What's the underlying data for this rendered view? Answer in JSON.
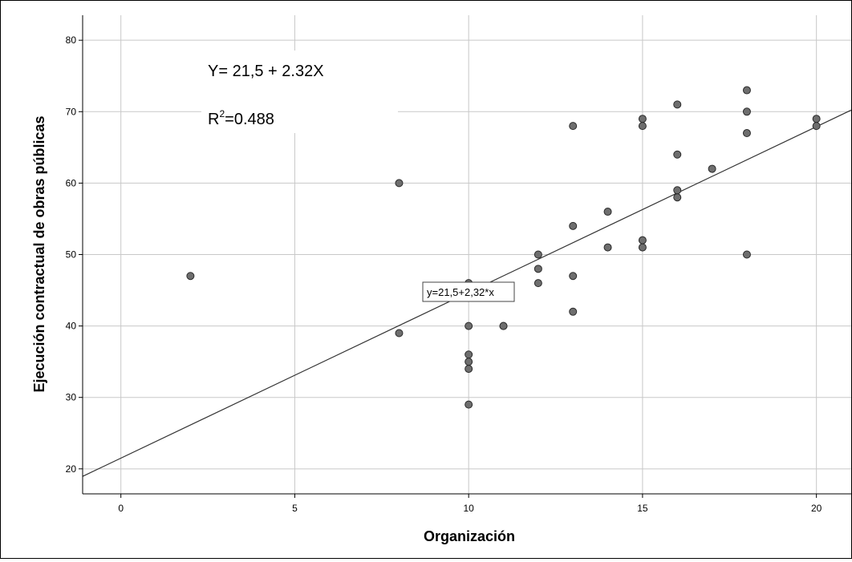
{
  "chart_data": {
    "type": "scatter",
    "xlabel": "Organización",
    "ylabel": "Ejecución contractual de obras públicas",
    "xlim": [
      -1.1,
      21
    ],
    "ylim": [
      16.5,
      83.5
    ],
    "xticks": [
      0,
      5,
      10,
      15,
      20
    ],
    "yticks": [
      20,
      30,
      40,
      50,
      60,
      70,
      80
    ],
    "grid": true,
    "annotations": {
      "equation": "Y= 21,5 + 2.32X",
      "r2_prefix": "R",
      "r2_sup": "2",
      "r2_value": "=0.488",
      "fit_label": "y=21,5+2,32*x"
    },
    "fit_line": {
      "intercept": 21.5,
      "slope": 2.32
    },
    "points": [
      [
        2,
        47
      ],
      [
        8,
        60
      ],
      [
        8,
        39
      ],
      [
        10,
        46
      ],
      [
        10,
        40
      ],
      [
        10,
        36
      ],
      [
        10,
        35
      ],
      [
        10,
        34
      ],
      [
        10,
        29
      ],
      [
        11,
        40
      ],
      [
        11,
        40
      ],
      [
        12,
        50
      ],
      [
        12,
        48
      ],
      [
        12,
        46
      ],
      [
        13,
        68
      ],
      [
        13,
        54
      ],
      [
        13,
        47
      ],
      [
        13,
        42
      ],
      [
        14,
        56
      ],
      [
        14,
        51
      ],
      [
        15,
        69
      ],
      [
        15,
        68
      ],
      [
        15,
        52
      ],
      [
        15,
        51
      ],
      [
        16,
        71
      ],
      [
        16,
        64
      ],
      [
        16,
        59
      ],
      [
        16,
        58
      ],
      [
        17,
        62
      ],
      [
        18,
        73
      ],
      [
        18,
        70
      ],
      [
        18,
        67
      ],
      [
        18,
        50
      ],
      [
        20,
        69
      ],
      [
        20,
        68
      ]
    ],
    "colors": {
      "point_fill": "#6e6e6e",
      "point_stroke": "#2a2a2a",
      "grid": "#c8c8c8",
      "line": "#333333"
    }
  }
}
